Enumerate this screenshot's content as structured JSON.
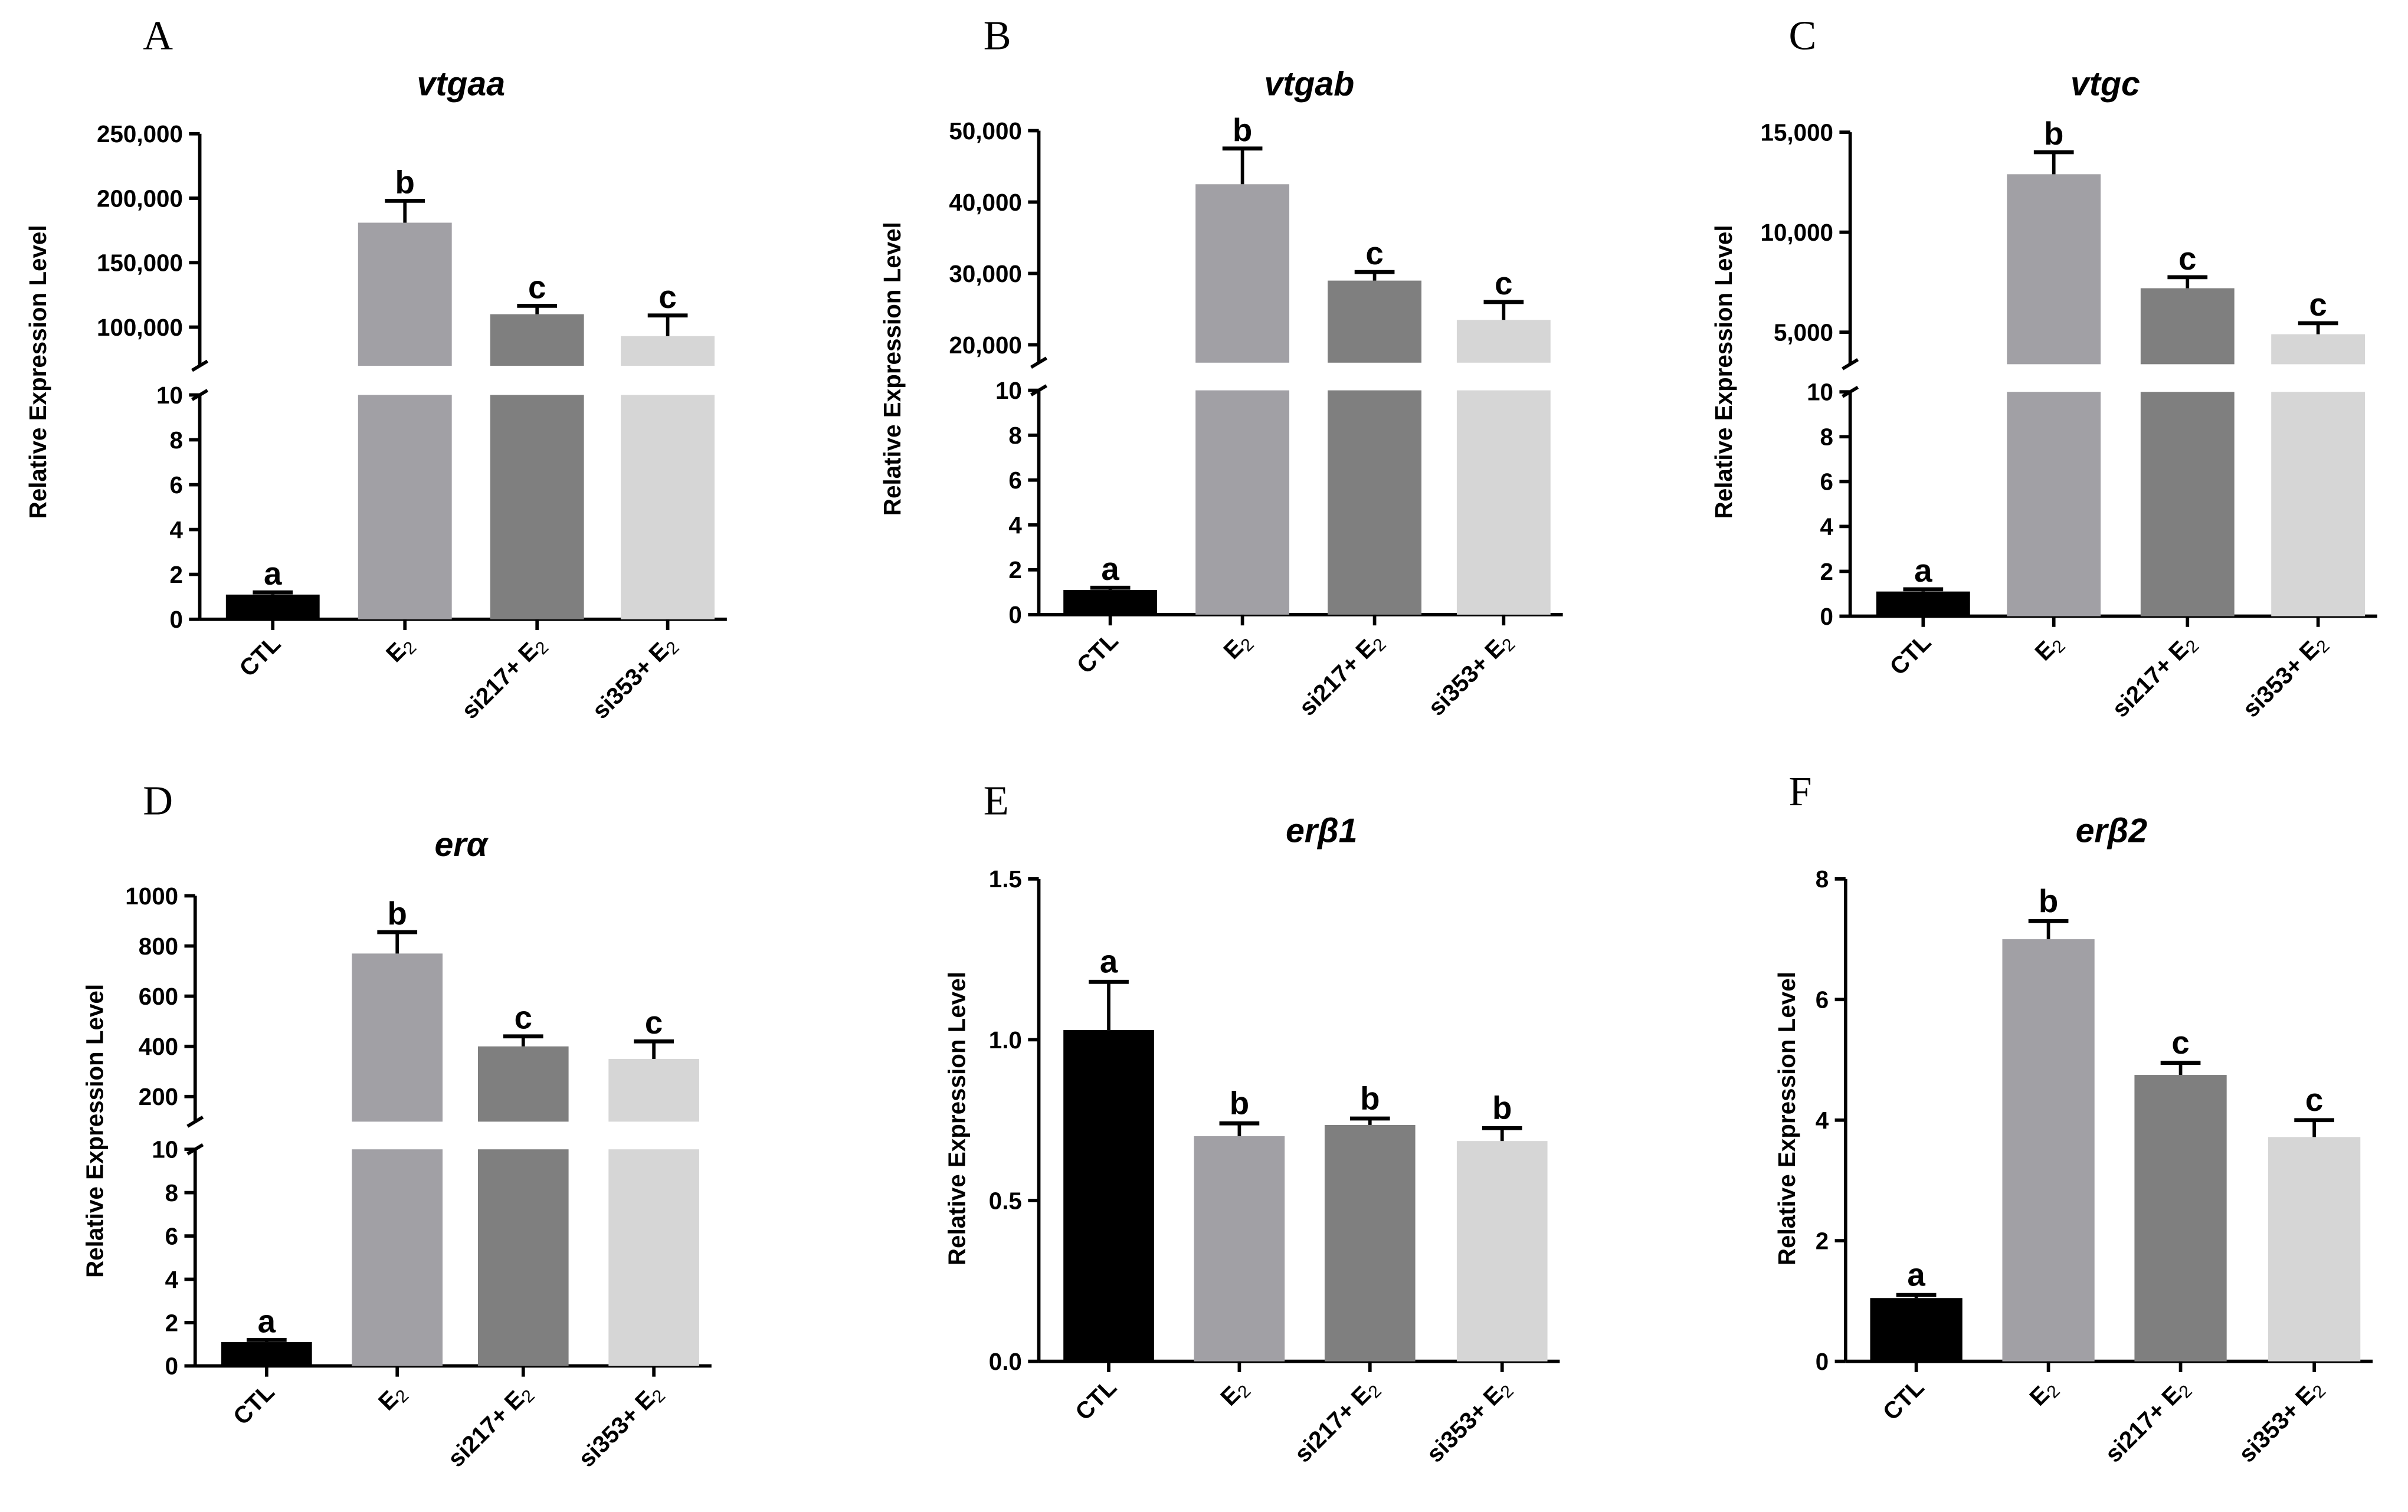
{
  "categories": [
    "CTL",
    "E",
    "si217+ E",
    "si353+ E"
  ],
  "subscript": "2",
  "colors": [
    "#000000",
    "#a1a0a5",
    "#7f7f7f",
    "#d6d6d6"
  ],
  "ylabel": "Relative Expression Level",
  "chart_data": [
    {
      "panel": "A",
      "title": "vtgaa",
      "type": "bar",
      "broken_axis": true,
      "categories": [
        "CTL",
        "E2",
        "si217+ E2",
        "si353+ E2"
      ],
      "values": [
        1.1,
        181000,
        110000,
        93000
      ],
      "errors": [
        0.1,
        17000,
        6500,
        16000
      ],
      "letters": [
        "a",
        "b",
        "c",
        "c"
      ],
      "lower_axis": {
        "ylim": [
          0,
          10
        ],
        "ticks": [
          0,
          2,
          4,
          6,
          8,
          10
        ]
      },
      "upper_axis": {
        "ylim": [
          70000,
          250000
        ],
        "ticks": [
          100000,
          150000,
          200000,
          250000
        ],
        "tick_labels": [
          "100,000",
          "150,000",
          "200,000",
          "250,000"
        ]
      }
    },
    {
      "panel": "B",
      "title": "vtgab",
      "type": "bar",
      "broken_axis": true,
      "categories": [
        "CTL",
        "E2",
        "si217+ E2",
        "si353+ E2"
      ],
      "values": [
        1.1,
        42500,
        29000,
        23500
      ],
      "errors": [
        0.1,
        5000,
        1200,
        2500
      ],
      "letters": [
        "a",
        "b",
        "c",
        "c"
      ],
      "lower_axis": {
        "ylim": [
          0,
          10
        ],
        "ticks": [
          0,
          2,
          4,
          6,
          8,
          10
        ]
      },
      "upper_axis": {
        "ylim": [
          17500,
          50000
        ],
        "ticks": [
          20000,
          30000,
          40000,
          50000
        ],
        "tick_labels": [
          "20,000",
          "30,000",
          "40,000",
          "50,000"
        ]
      }
    },
    {
      "panel": "C",
      "title": "vtgc",
      "type": "bar",
      "broken_axis": true,
      "categories": [
        "CTL",
        "E2",
        "si217+ E2",
        "si353+ E2"
      ],
      "values": [
        1.1,
        12900,
        7200,
        4900
      ],
      "errors": [
        0.1,
        1100,
        550,
        550
      ],
      "letters": [
        "a",
        "b",
        "c",
        "c"
      ],
      "lower_axis": {
        "ylim": [
          0,
          10
        ],
        "ticks": [
          0,
          2,
          4,
          6,
          8,
          10
        ]
      },
      "upper_axis": {
        "ylim": [
          3400,
          15000
        ],
        "ticks": [
          5000,
          10000,
          15000
        ],
        "tick_labels": [
          "5,000",
          "10,000",
          "15,000"
        ]
      }
    },
    {
      "panel": "D",
      "title": "erα",
      "type": "bar",
      "broken_axis": true,
      "categories": [
        "CTL",
        "E2",
        "si217+ E2",
        "si353+ E2"
      ],
      "values": [
        1.1,
        770,
        400,
        350
      ],
      "errors": [
        0.1,
        85,
        40,
        70
      ],
      "letters": [
        "a",
        "b",
        "c",
        "c"
      ],
      "lower_axis": {
        "ylim": [
          0,
          10
        ],
        "ticks": [
          0,
          2,
          4,
          6,
          8,
          10
        ]
      },
      "upper_axis": {
        "ylim": [
          100,
          1000
        ],
        "ticks": [
          200,
          400,
          600,
          800,
          1000
        ],
        "tick_labels": [
          "200",
          "400",
          "600",
          "800",
          "1000"
        ]
      }
    },
    {
      "panel": "E",
      "title": "erβ1",
      "type": "bar",
      "broken_axis": false,
      "categories": [
        "CTL",
        "E2",
        "si217+ E2",
        "si353+ E2"
      ],
      "values": [
        1.03,
        0.7,
        0.735,
        0.685
      ],
      "errors": [
        0.15,
        0.04,
        0.02,
        0.04
      ],
      "letters": [
        "a",
        "b",
        "b",
        "b"
      ],
      "axis": {
        "ylim": [
          0,
          1.5
        ],
        "ticks": [
          0,
          0.5,
          1,
          1.5
        ],
        "tick_labels": [
          "0.0",
          "0.5",
          "1.0",
          "1.5"
        ]
      }
    },
    {
      "panel": "F",
      "title": "erβ2",
      "type": "bar",
      "broken_axis": false,
      "categories": [
        "CTL",
        "E2",
        "si217+ E2",
        "si353+ E2"
      ],
      "values": [
        1.05,
        7.0,
        4.75,
        3.72
      ],
      "errors": [
        0.05,
        0.3,
        0.2,
        0.28
      ],
      "letters": [
        "a",
        "b",
        "c",
        "c"
      ],
      "axis": {
        "ylim": [
          0,
          8
        ],
        "ticks": [
          0,
          2,
          4,
          6,
          8
        ],
        "tick_labels": [
          "0",
          "2",
          "4",
          "6",
          "8"
        ]
      }
    }
  ]
}
